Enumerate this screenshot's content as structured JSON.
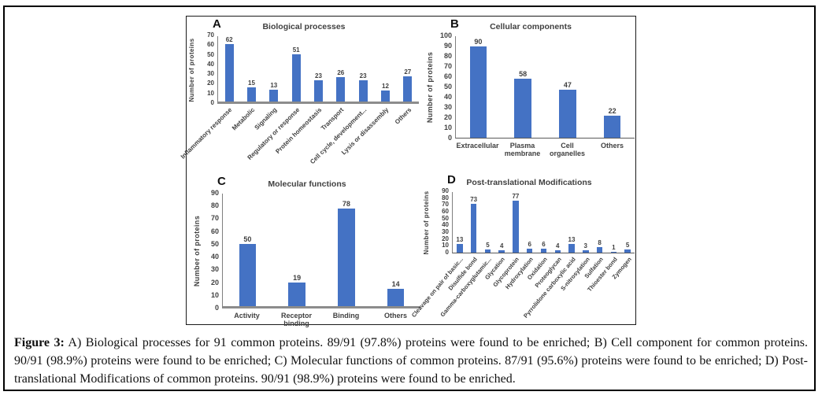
{
  "figure": {
    "caption_label": "Figure 3:",
    "caption_text": " A) Biological processes for 91 common proteins. 89/91 (97.8%) proteins were found to be enriched; B) Cell component for common proteins. 90/91 (98.9%) proteins were found to be enriched; C) Molecular functions of common proteins. 87/91 (95.6%) proteins were found to be enriched; D) Post-translational Modifications of common proteins. 90/91 (98.9%) proteins were found to be enriched."
  },
  "colors": {
    "bar": "#4472C4",
    "axis": "#7f7f7f",
    "text": "#404040"
  },
  "chart_data": [
    {
      "panel": "A",
      "type": "bar",
      "title": "Biological processes",
      "xlabel": "",
      "ylabel": "Number of proteins",
      "ylim": [
        0,
        70
      ],
      "ytick_step": 10,
      "grid": false,
      "legend": "none",
      "rotated_labels": true,
      "categories": [
        "Inflammatory response",
        "Metabolic",
        "Signaling",
        "Regulatory or response",
        "Protein homeostasis",
        "Transport",
        "Cell cycle, development...",
        "Lysis or disassembly",
        "Others"
      ],
      "values": [
        62,
        15,
        13,
        51,
        23,
        26,
        23,
        12,
        27
      ]
    },
    {
      "panel": "B",
      "type": "bar",
      "title": "Cellular components",
      "xlabel": "",
      "ylabel": "Number of proteins",
      "ylim": [
        0,
        100
      ],
      "ytick_step": 10,
      "grid": false,
      "legend": "none",
      "rotated_labels": false,
      "categories": [
        "Extracellular",
        "Plasma membrane",
        "Cell organelles",
        "Others"
      ],
      "values": [
        90,
        58,
        47,
        22
      ]
    },
    {
      "panel": "C",
      "type": "bar",
      "title": "Molecular functions",
      "xlabel": "",
      "ylabel": "Number of proteins",
      "ylim": [
        0,
        90
      ],
      "ytick_step": 10,
      "grid": false,
      "legend": "none",
      "rotated_labels": false,
      "categories": [
        "Activity",
        "Receptor binding",
        "Binding",
        "Others"
      ],
      "values": [
        50,
        19,
        78,
        14
      ]
    },
    {
      "panel": "D",
      "type": "bar",
      "title": "Post-translational Modifications",
      "xlabel": "",
      "ylabel": "Number of proteins",
      "ylim": [
        0,
        90
      ],
      "ytick_step": 10,
      "grid": false,
      "legend": "none",
      "rotated_labels": true,
      "categories": [
        "Cleavage on pair of basic...",
        "Disulfide bond",
        "Gamma-carboxyglutamic...",
        "Glycation",
        "Glycoprotein",
        "Hydroxylation",
        "Oxidation",
        "Proteoglycan",
        "Pyrrolidone carboxylic acid",
        "S-nitrosylation",
        "Sulfation",
        "Thioester bond",
        "Zymogen"
      ],
      "values": [
        13,
        73,
        5,
        4,
        77,
        6,
        6,
        4,
        13,
        3,
        8,
        1,
        5
      ]
    }
  ]
}
